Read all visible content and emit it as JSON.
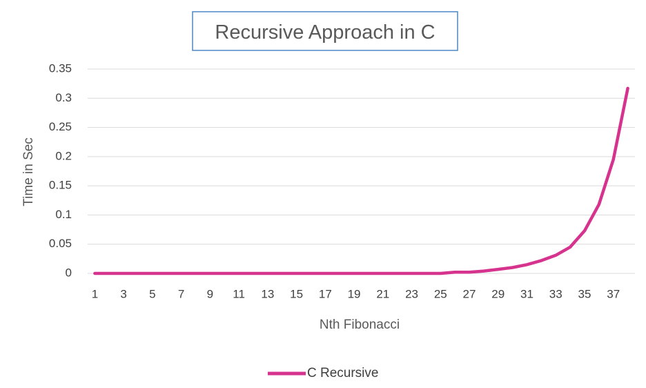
{
  "chart_data": {
    "type": "line",
    "title": "Recursive Approach in C",
    "xlabel": "Nth Fibonacci",
    "ylabel": "Time in Sec",
    "ylim": [
      0,
      0.35
    ],
    "yticks": [
      "0",
      "0.05",
      "0.1",
      "0.15",
      "0.2",
      "0.25",
      "0.3",
      "0.35"
    ],
    "x": [
      1,
      2,
      3,
      4,
      5,
      6,
      7,
      8,
      9,
      10,
      11,
      12,
      13,
      14,
      15,
      16,
      17,
      18,
      19,
      20,
      21,
      22,
      23,
      24,
      25,
      26,
      27,
      28,
      29,
      30,
      31,
      32,
      33,
      34,
      35,
      36,
      37,
      38
    ],
    "xtick_labels": [
      "1",
      "3",
      "5",
      "7",
      "9",
      "11",
      "13",
      "15",
      "17",
      "19",
      "21",
      "23",
      "25",
      "27",
      "29",
      "31",
      "33",
      "35",
      "37"
    ],
    "grid": true,
    "legend_position": "bottom",
    "series": [
      {
        "name": "C Recursive",
        "color": "#d6338f",
        "values": [
          0,
          0,
          0,
          0,
          0,
          0,
          0,
          0,
          0,
          0,
          0,
          0,
          0,
          0,
          0,
          0,
          0,
          0,
          0,
          0,
          0,
          0,
          0,
          0,
          0,
          0.002,
          0.002,
          0.004,
          0.007,
          0.01,
          0.015,
          0.022,
          0.031,
          0.045,
          0.073,
          0.118,
          0.195,
          0.317
        ]
      }
    ]
  }
}
